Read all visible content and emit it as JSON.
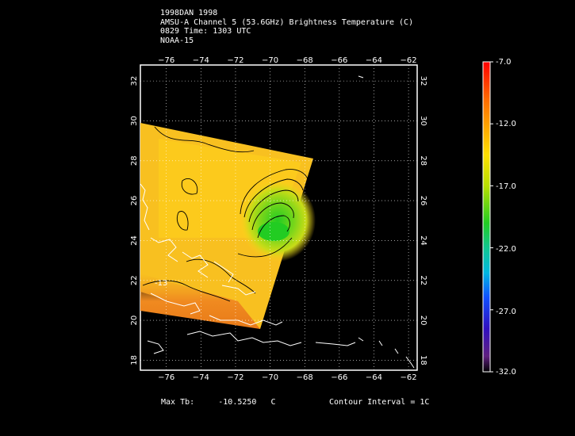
{
  "header": {
    "line1": "1998DAN 1998",
    "line2": "AMSU-A Channel 5 (53.6GHz) Brightness Temperature (C)",
    "line3": "0829 Time: 1303 UTC",
    "line4": "NOAA-15"
  },
  "map": {
    "lon_ticks": [
      -76,
      -74,
      -72,
      -70,
      -68,
      -66,
      -64,
      -62
    ],
    "lat_ticks": [
      18,
      20,
      22,
      24,
      26,
      28,
      30,
      32
    ],
    "lon_range": [
      -77.5,
      -61.5
    ],
    "lat_range": [
      17.5,
      32.8
    ],
    "contour_label": "-13",
    "colors": {
      "swath_warm": "#f0a020",
      "swath_core": "#ffd21a",
      "cold_core": "#33cc22",
      "coast": "#ffffff",
      "contour": "#000000"
    }
  },
  "colorbar": {
    "labels": [
      "-7.0",
      "-12.0",
      "-17.0",
      "-22.0",
      "-27.0",
      "-32.0"
    ]
  },
  "footer": {
    "max_tb_label": "Max Tb:",
    "max_tb_value": "-10.5250",
    "max_tb_unit": "C",
    "contour_interval": "Contour Interval = 1C"
  }
}
